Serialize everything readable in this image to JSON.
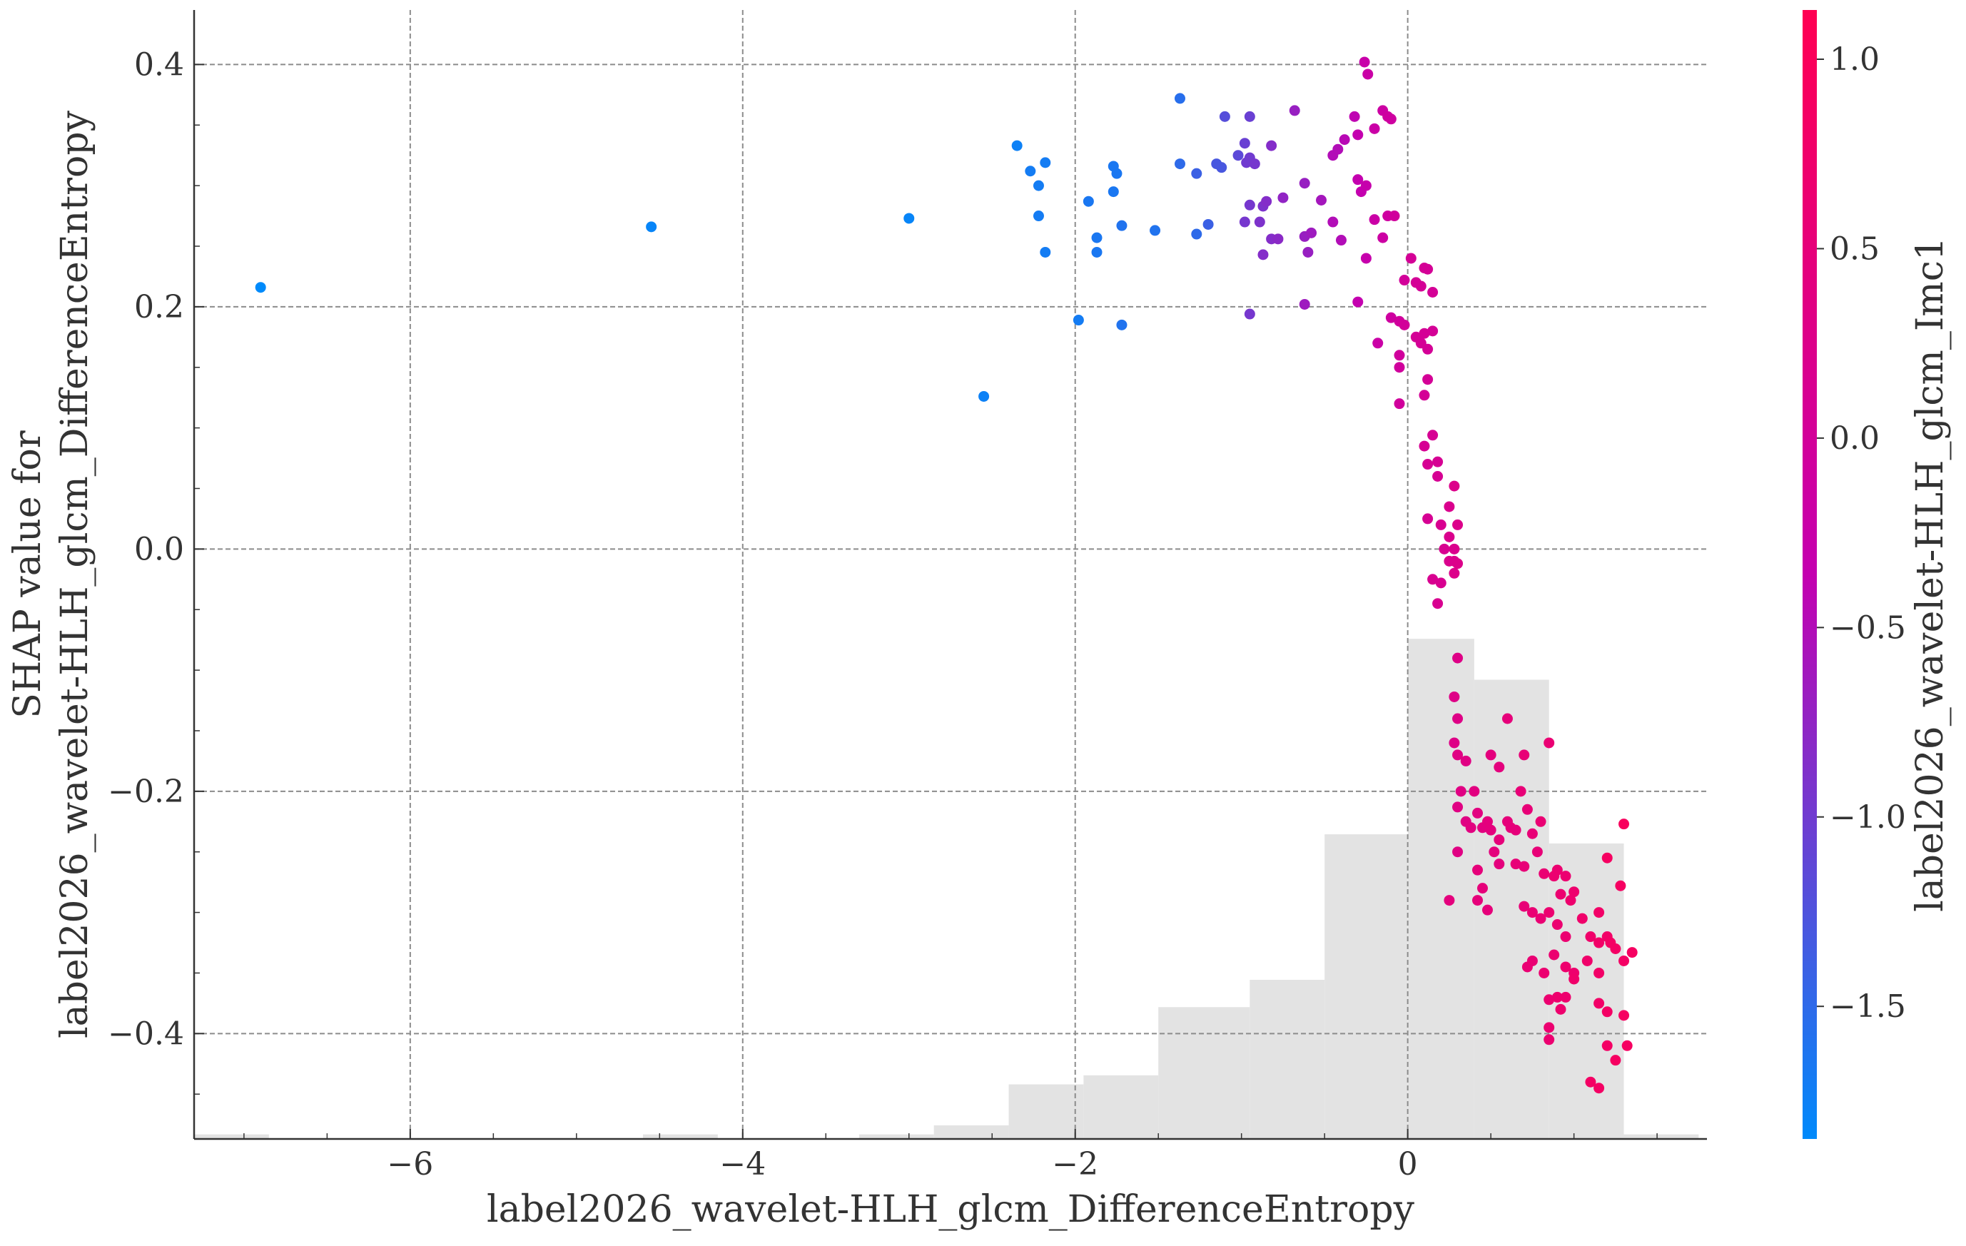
{
  "chart_data": {
    "type": "scatter",
    "title": "",
    "xlabel": "label2026_wavelet-HLH_glcm_DifferenceEntropy",
    "ylabel_lines": [
      "SHAP value for",
      "label2026_wavelet-HLH_glcm_DifferenceEntropy"
    ],
    "xlim": [
      -7.3,
      1.8
    ],
    "ylim": [
      -0.487,
      0.445
    ],
    "xticks": [
      -6,
      -4,
      -2,
      0
    ],
    "xtick_labels": [
      "−6",
      "−4",
      "−2",
      "0"
    ],
    "yticks": [
      0.4,
      0.2,
      0.0,
      -0.2,
      -0.4
    ],
    "ytick_labels": [
      "0.4",
      "0.2",
      "0.0",
      "−0.2",
      "−0.4"
    ],
    "grid": true,
    "colorbar": {
      "label": "label2026_wavelet-HLH_glcm_Imc1",
      "range": [
        -1.85,
        1.13
      ],
      "ticks": [
        1.0,
        0.5,
        0.0,
        -0.5,
        -1.0,
        -1.5
      ],
      "tick_labels": [
        "1.0",
        "0.5",
        "0.0",
        "−0.5",
        "−1.0",
        "−1.5"
      ],
      "color_low": "#008afb",
      "color_mid": "#c400b0",
      "color_high": "#ff0052"
    },
    "histogram": {
      "color": "#e3e3e3",
      "bins": [
        {
          "x0": -7.3,
          "x1": -6.85,
          "count": 1
        },
        {
          "x0": -4.6,
          "x1": -4.15,
          "count": 1
        },
        {
          "x0": -3.3,
          "x1": -2.85,
          "count": 1
        },
        {
          "x0": -2.85,
          "x1": -2.4,
          "count": 3
        },
        {
          "x0": -2.4,
          "x1": -1.95,
          "count": 12
        },
        {
          "x0": -1.95,
          "x1": -1.5,
          "count": 14
        },
        {
          "x0": -1.5,
          "x1": -0.95,
          "count": 29
        },
        {
          "x0": -0.95,
          "x1": -0.5,
          "count": 35
        },
        {
          "x0": -0.5,
          "x1": 0.0,
          "count": 67
        },
        {
          "x0": 0.0,
          "x1": 0.4,
          "count": 110
        },
        {
          "x0": 0.4,
          "x1": 0.85,
          "count": 101
        },
        {
          "x0": 0.85,
          "x1": 1.3,
          "count": 65
        },
        {
          "x0": 1.3,
          "x1": 1.75,
          "count": 1
        }
      ]
    },
    "points": [
      [
        -6.9,
        0.216,
        -1.85
      ],
      [
        -4.55,
        0.266,
        -1.8
      ],
      [
        -3.0,
        0.273,
        -1.8
      ],
      [
        -2.55,
        0.126,
        -1.75
      ],
      [
        -2.35,
        0.333,
        -1.75
      ],
      [
        -2.27,
        0.312,
        -1.7
      ],
      [
        -2.18,
        0.319,
        -1.7
      ],
      [
        -2.22,
        0.3,
        -1.7
      ],
      [
        -2.22,
        0.275,
        -1.7
      ],
      [
        -2.18,
        0.245,
        -1.7
      ],
      [
        -1.98,
        0.189,
        -1.7
      ],
      [
        -1.92,
        0.287,
        -1.65
      ],
      [
        -1.87,
        0.257,
        -1.65
      ],
      [
        -1.87,
        0.245,
        -1.65
      ],
      [
        -1.77,
        0.316,
        -1.65
      ],
      [
        -1.75,
        0.31,
        -1.65
      ],
      [
        -1.77,
        0.295,
        -1.65
      ],
      [
        -1.72,
        0.267,
        -1.6
      ],
      [
        -1.72,
        0.185,
        -1.6
      ],
      [
        -1.52,
        0.263,
        -1.6
      ],
      [
        -1.37,
        0.372,
        -1.55
      ],
      [
        -1.37,
        0.318,
        -1.5
      ],
      [
        -1.27,
        0.31,
        -1.4
      ],
      [
        -1.27,
        0.26,
        -1.5
      ],
      [
        -1.2,
        0.268,
        -1.4
      ],
      [
        -1.15,
        0.318,
        -1.3
      ],
      [
        -1.12,
        0.315,
        -1.3
      ],
      [
        -1.1,
        0.357,
        -1.2
      ],
      [
        -1.02,
        0.325,
        -1.15
      ],
      [
        -0.98,
        0.335,
        -1.05
      ],
      [
        -0.97,
        0.319,
        -1.0
      ],
      [
        -0.95,
        0.323,
        -1.0
      ],
      [
        -0.92,
        0.318,
        -0.95
      ],
      [
        -0.95,
        0.284,
        -0.95
      ],
      [
        -0.98,
        0.27,
        -0.95
      ],
      [
        -0.95,
        0.357,
        -1.05
      ],
      [
        -0.95,
        0.194,
        -0.95
      ],
      [
        -0.87,
        0.283,
        -0.9
      ],
      [
        -0.89,
        0.27,
        -0.9
      ],
      [
        -0.85,
        0.287,
        -0.85
      ],
      [
        -0.82,
        0.333,
        -0.85
      ],
      [
        -0.82,
        0.256,
        -0.85
      ],
      [
        -0.87,
        0.243,
        -0.85
      ],
      [
        -0.78,
        0.256,
        -0.8
      ],
      [
        -0.75,
        0.29,
        -0.75
      ],
      [
        -0.68,
        0.362,
        -0.7
      ],
      [
        -0.62,
        0.302,
        -0.7
      ],
      [
        -0.62,
        0.258,
        -0.7
      ],
      [
        -0.6,
        0.245,
        -0.7
      ],
      [
        -0.58,
        0.261,
        -0.65
      ],
      [
        -0.62,
        0.202,
        -0.65
      ],
      [
        -0.52,
        0.288,
        -0.6
      ],
      [
        -0.45,
        0.325,
        -0.5
      ],
      [
        -0.42,
        0.33,
        -0.5
      ],
      [
        -0.38,
        0.338,
        -0.45
      ],
      [
        -0.45,
        0.27,
        -0.5
      ],
      [
        -0.4,
        0.255,
        -0.5
      ],
      [
        -0.32,
        0.357,
        -0.4
      ],
      [
        -0.3,
        0.342,
        -0.35
      ],
      [
        -0.3,
        0.305,
        -0.35
      ],
      [
        -0.28,
        0.295,
        -0.35
      ],
      [
        -0.25,
        0.3,
        -0.3
      ],
      [
        -0.3,
        0.204,
        -0.35
      ],
      [
        -0.25,
        0.24,
        -0.3
      ],
      [
        -0.26,
        0.402,
        -0.25
      ],
      [
        -0.24,
        0.392,
        -0.2
      ],
      [
        -0.2,
        0.347,
        -0.2
      ],
      [
        -0.15,
        0.362,
        -0.15
      ],
      [
        -0.12,
        0.357,
        -0.1
      ],
      [
        -0.1,
        0.355,
        -0.1
      ],
      [
        -0.2,
        0.272,
        -0.2
      ],
      [
        -0.15,
        0.257,
        -0.15
      ],
      [
        -0.12,
        0.275,
        -0.1
      ],
      [
        -0.08,
        0.275,
        -0.05
      ],
      [
        -0.18,
        0.17,
        -0.2
      ],
      [
        -0.1,
        0.191,
        -0.1
      ],
      [
        -0.05,
        0.188,
        -0.05
      ],
      [
        -0.02,
        0.185,
        0.0
      ],
      [
        -0.05,
        0.16,
        -0.05
      ],
      [
        -0.05,
        0.15,
        -0.05
      ],
      [
        -0.05,
        0.12,
        -0.05
      ],
      [
        -0.02,
        0.222,
        0.0
      ],
      [
        0.02,
        0.24,
        0.05
      ],
      [
        0.05,
        0.22,
        0.05
      ],
      [
        0.08,
        0.217,
        0.05
      ],
      [
        0.1,
        0.232,
        0.05
      ],
      [
        0.12,
        0.231,
        0.05
      ],
      [
        0.05,
        0.175,
        0.05
      ],
      [
        0.08,
        0.17,
        0.05
      ],
      [
        0.1,
        0.178,
        0.05
      ],
      [
        0.12,
        0.165,
        0.05
      ],
      [
        0.15,
        0.18,
        0.05
      ],
      [
        0.12,
        0.14,
        0.05
      ],
      [
        0.1,
        0.127,
        0.05
      ],
      [
        0.15,
        0.212,
        0.05
      ],
      [
        0.1,
        0.085,
        0.1
      ],
      [
        0.15,
        0.094,
        0.1
      ],
      [
        0.12,
        0.07,
        0.1
      ],
      [
        0.18,
        0.072,
        0.1
      ],
      [
        0.18,
        0.06,
        0.1
      ],
      [
        0.12,
        0.025,
        0.1
      ],
      [
        0.2,
        0.02,
        0.15
      ],
      [
        0.22,
        0.0,
        0.15
      ],
      [
        0.25,
        0.01,
        0.2
      ],
      [
        0.25,
        -0.01,
        0.2
      ],
      [
        0.28,
        0.0,
        0.2
      ],
      [
        0.28,
        -0.01,
        0.2
      ],
      [
        0.2,
        -0.028,
        0.15
      ],
      [
        0.15,
        -0.025,
        0.15
      ],
      [
        0.18,
        -0.045,
        0.15
      ],
      [
        0.25,
        0.035,
        0.2
      ],
      [
        0.28,
        0.052,
        0.25
      ],
      [
        0.3,
        0.02,
        0.25
      ],
      [
        0.3,
        -0.012,
        0.25
      ],
      [
        0.28,
        -0.02,
        0.25
      ],
      [
        0.3,
        -0.09,
        0.3
      ],
      [
        0.28,
        -0.122,
        0.3
      ],
      [
        0.3,
        -0.14,
        0.3
      ],
      [
        0.28,
        -0.16,
        0.3
      ],
      [
        0.3,
        -0.17,
        0.35
      ],
      [
        0.35,
        -0.175,
        0.35
      ],
      [
        0.32,
        -0.2,
        0.35
      ],
      [
        0.3,
        -0.213,
        0.35
      ],
      [
        0.35,
        -0.225,
        0.35
      ],
      [
        0.3,
        -0.25,
        0.35
      ],
      [
        0.38,
        -0.23,
        0.4
      ],
      [
        0.4,
        -0.2,
        0.4
      ],
      [
        0.42,
        -0.218,
        0.4
      ],
      [
        0.45,
        -0.23,
        0.4
      ],
      [
        0.48,
        -0.225,
        0.45
      ],
      [
        0.5,
        -0.232,
        0.45
      ],
      [
        0.52,
        -0.25,
        0.45
      ],
      [
        0.55,
        -0.26,
        0.45
      ],
      [
        0.5,
        -0.17,
        0.45
      ],
      [
        0.55,
        -0.18,
        0.45
      ],
      [
        0.6,
        -0.14,
        0.5
      ],
      [
        0.55,
        -0.24,
        0.5
      ],
      [
        0.6,
        -0.225,
        0.5
      ],
      [
        0.62,
        -0.23,
        0.5
      ],
      [
        0.65,
        -0.232,
        0.5
      ],
      [
        0.68,
        -0.2,
        0.55
      ],
      [
        0.7,
        -0.17,
        0.55
      ],
      [
        0.72,
        -0.215,
        0.55
      ],
      [
        0.75,
        -0.235,
        0.55
      ],
      [
        0.78,
        -0.25,
        0.55
      ],
      [
        0.65,
        -0.26,
        0.55
      ],
      [
        0.7,
        -0.262,
        0.55
      ],
      [
        0.85,
        -0.16,
        0.6
      ],
      [
        0.8,
        -0.225,
        0.6
      ],
      [
        0.82,
        -0.268,
        0.6
      ],
      [
        0.88,
        -0.27,
        0.65
      ],
      [
        0.9,
        -0.265,
        0.65
      ],
      [
        0.95,
        -0.27,
        0.65
      ],
      [
        0.92,
        -0.285,
        0.65
      ],
      [
        0.98,
        -0.29,
        0.7
      ],
      [
        1.0,
        -0.283,
        0.7
      ],
      [
        0.42,
        -0.29,
        0.5
      ],
      [
        0.48,
        -0.298,
        0.5
      ],
      [
        0.45,
        -0.28,
        0.5
      ],
      [
        0.42,
        -0.265,
        0.5
      ],
      [
        0.25,
        -0.29,
        0.45
      ],
      [
        0.7,
        -0.295,
        0.55
      ],
      [
        0.75,
        -0.3,
        0.6
      ],
      [
        0.8,
        -0.305,
        0.6
      ],
      [
        0.85,
        -0.3,
        0.65
      ],
      [
        0.9,
        -0.31,
        0.65
      ],
      [
        0.95,
        -0.32,
        0.65
      ],
      [
        0.88,
        -0.335,
        0.65
      ],
      [
        0.75,
        -0.34,
        0.6
      ],
      [
        0.72,
        -0.345,
        0.6
      ],
      [
        0.95,
        -0.345,
        0.7
      ],
      [
        1.0,
        -0.35,
        0.7
      ],
      [
        1.05,
        -0.305,
        0.75
      ],
      [
        1.1,
        -0.32,
        0.75
      ],
      [
        1.15,
        -0.325,
        0.8
      ],
      [
        1.2,
        -0.32,
        0.8
      ],
      [
        1.25,
        -0.33,
        0.85
      ],
      [
        1.3,
        -0.34,
        0.85
      ],
      [
        1.15,
        -0.3,
        0.8
      ],
      [
        1.22,
        -0.325,
        0.85
      ],
      [
        1.35,
        -0.333,
        0.9
      ],
      [
        1.28,
        -0.278,
        0.9
      ],
      [
        1.3,
        -0.227,
        0.95
      ],
      [
        1.2,
        -0.255,
        0.9
      ],
      [
        1.15,
        -0.35,
        0.8
      ],
      [
        1.08,
        -0.34,
        0.75
      ],
      [
        0.9,
        -0.37,
        0.7
      ],
      [
        0.92,
        -0.38,
        0.7
      ],
      [
        0.95,
        -0.37,
        0.7
      ],
      [
        0.85,
        -0.372,
        0.65
      ],
      [
        0.85,
        -0.395,
        0.65
      ],
      [
        0.85,
        -0.405,
        0.65
      ],
      [
        1.15,
        -0.375,
        0.8
      ],
      [
        1.2,
        -0.382,
        0.85
      ],
      [
        1.3,
        -0.385,
        0.9
      ],
      [
        1.2,
        -0.41,
        0.85
      ],
      [
        1.32,
        -0.41,
        0.9
      ],
      [
        1.25,
        -0.422,
        0.9
      ],
      [
        1.1,
        -0.44,
        0.85
      ],
      [
        1.15,
        -0.445,
        0.85
      ],
      [
        1.0,
        -0.355,
        0.75
      ],
      [
        0.82,
        -0.35,
        0.65
      ]
    ]
  }
}
